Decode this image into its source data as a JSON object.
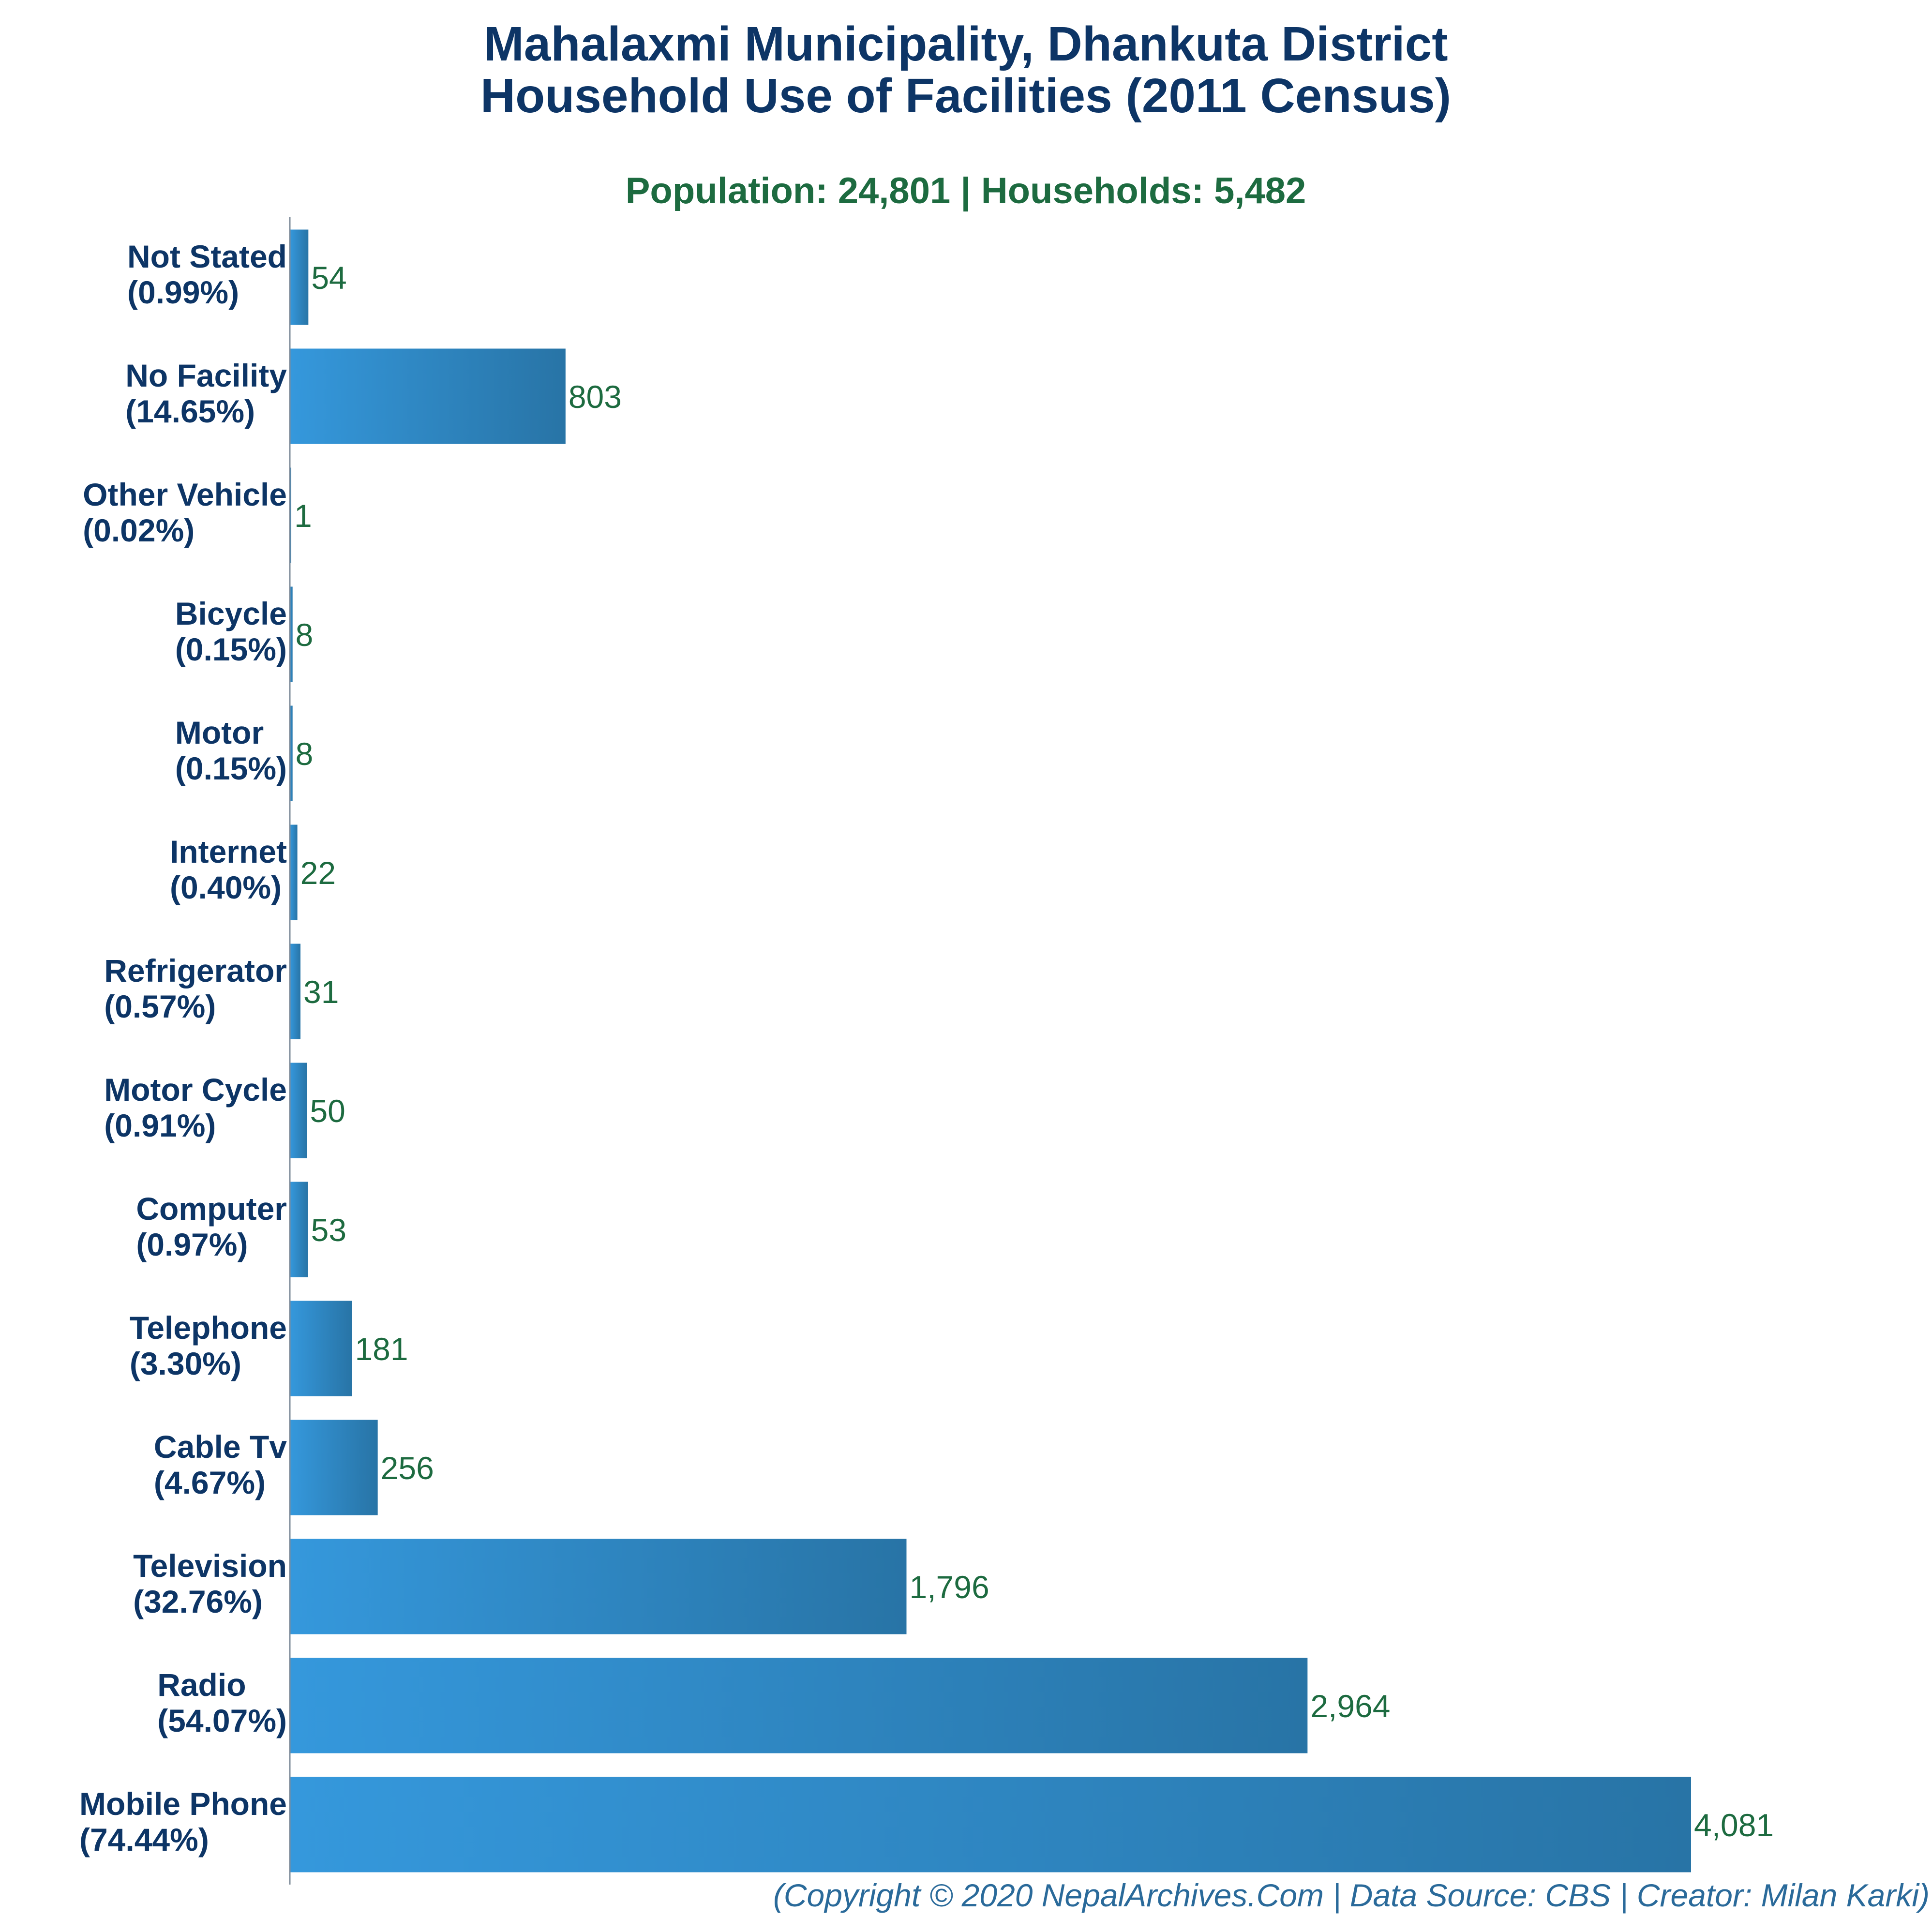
{
  "chart_data": {
    "type": "bar",
    "orientation": "horizontal",
    "title_line1": "Mahalaxmi Municipality, Dhankuta District",
    "title_line2": "Household Use of Facilities (2011 Census)",
    "subtitle": "Population: 24,801 | Households: 5,482",
    "categories": [
      {
        "name": "Not Stated",
        "pct": "(0.99%)",
        "value": 54,
        "value_label": "54"
      },
      {
        "name": "No Facility",
        "pct": "(14.65%)",
        "value": 803,
        "value_label": "803"
      },
      {
        "name": "Other Vehicle",
        "pct": "(0.02%)",
        "value": 1,
        "value_label": "1"
      },
      {
        "name": "Bicycle",
        "pct": "(0.15%)",
        "value": 8,
        "value_label": "8"
      },
      {
        "name": "Motor",
        "pct": "(0.15%)",
        "value": 8,
        "value_label": "8"
      },
      {
        "name": "Internet",
        "pct": "(0.40%)",
        "value": 22,
        "value_label": "22"
      },
      {
        "name": "Refrigerator",
        "pct": "(0.57%)",
        "value": 31,
        "value_label": "31"
      },
      {
        "name": "Motor Cycle",
        "pct": "(0.91%)",
        "value": 50,
        "value_label": "50"
      },
      {
        "name": "Computer",
        "pct": "(0.97%)",
        "value": 53,
        "value_label": "53"
      },
      {
        "name": "Telephone",
        "pct": "(3.30%)",
        "value": 181,
        "value_label": "181"
      },
      {
        "name": "Cable Tv",
        "pct": "(4.67%)",
        "value": 256,
        "value_label": "256"
      },
      {
        "name": "Television",
        "pct": "(32.76%)",
        "value": 1796,
        "value_label": "1,796"
      },
      {
        "name": "Radio",
        "pct": "(54.07%)",
        "value": 2964,
        "value_label": "2,964"
      },
      {
        "name": "Mobile Phone",
        "pct": "(74.44%)",
        "value": 4081,
        "value_label": "4,081"
      }
    ],
    "xlim": [
      0,
      4081
    ],
    "grid": false,
    "legend": "none",
    "colors": {
      "bar_light": "#3598dc",
      "bar_dark": "#2874a6",
      "title": "#0d3566",
      "subtitle": "#1d6b40",
      "value_label": "#1d6b40",
      "footer": "#2a6a9a"
    }
  },
  "footer": "(Copyright © 2020 NepalArchives.Com | Data Source: CBS | Creator: Milan Karki)"
}
